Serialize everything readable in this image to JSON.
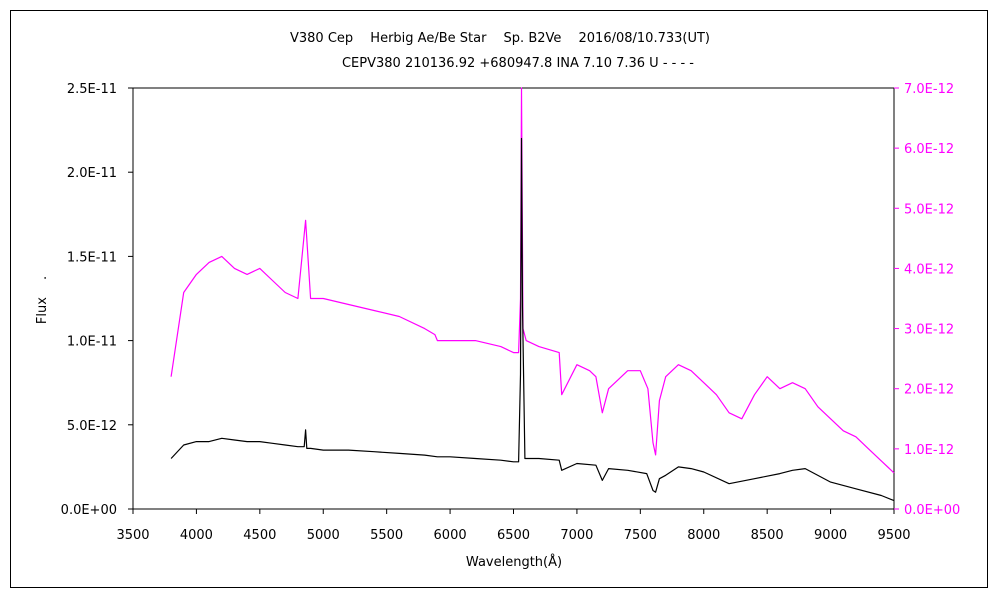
{
  "chart_data": {
    "type": "line",
    "title_line1": "V380 Cep　 Herbig Ae/Be Star　 Sp. B2Ve　 2016/08/10.733(UT)",
    "title_line2": "CEPV380 210136.92 +680947.8 INA 7.10 7.36 U - - - -",
    "xlabel": "Wavelength(Å)",
    "ylabel": "Flux　 .",
    "xlim": [
      3500,
      9500
    ],
    "ylim_left": [
      0,
      2.5e-11
    ],
    "ylim_right": [
      0,
      7e-12
    ],
    "x_ticks": [
      "3500",
      "4000",
      "4500",
      "5000",
      "5500",
      "6000",
      "6500",
      "7000",
      "7500",
      "8000",
      "8500",
      "9000",
      "9500"
    ],
    "y_left_ticks": [
      "0.0E+00",
      "5.0E-12",
      "1.0E-11",
      "1.5E-11",
      "2.0E-11",
      "2.5E-11"
    ],
    "y_right_ticks": [
      "0.0E+00",
      "1.0E-12",
      "2.0E-12",
      "3.0E-12",
      "4.0E-12",
      "5.0E-12",
      "6.0E-12",
      "7.0E-12"
    ],
    "colors": {
      "left_series": "#000000",
      "right_series": "#ff00ff",
      "right_axis": "#ff00ff"
    },
    "series": [
      {
        "axis": "left",
        "x": [
          3800,
          3900,
          4000,
          4100,
          4200,
          4300,
          4400,
          4500,
          4600,
          4700,
          4800,
          4850,
          4861,
          4870,
          4900,
          5000,
          5200,
          5400,
          5600,
          5800,
          5900,
          6000,
          6200,
          6400,
          6500,
          6540,
          6555,
          6563,
          6571,
          6590,
          6600,
          6700,
          6860,
          6880,
          7000,
          7150,
          7200,
          7250,
          7400,
          7550,
          7600,
          7620,
          7650,
          7700,
          7800,
          7900,
          8000,
          8200,
          8400,
          8600,
          8700,
          8800,
          9000,
          9200,
          9400,
          9500
        ],
        "values": [
          3e-12,
          3.8e-12,
          4e-12,
          4e-12,
          4.2e-12,
          4.1e-12,
          4e-12,
          4e-12,
          3.9e-12,
          3.8e-12,
          3.7e-12,
          3.7e-12,
          4.7e-12,
          3.6e-12,
          3.6e-12,
          3.5e-12,
          3.5e-12,
          3.4e-12,
          3.3e-12,
          3.2e-12,
          3.1e-12,
          3.1e-12,
          3e-12,
          2.9e-12,
          2.8e-12,
          2.8e-12,
          8e-12,
          2.2e-11,
          1.2e-11,
          3e-12,
          3e-12,
          3e-12,
          2.9e-12,
          2.3e-12,
          2.7e-12,
          2.6e-12,
          1.7e-12,
          2.4e-12,
          2.3e-12,
          2.1e-12,
          1.1e-12,
          1e-12,
          1.8e-12,
          2e-12,
          2.5e-12,
          2.4e-12,
          2.2e-12,
          1.5e-12,
          1.8e-12,
          2.1e-12,
          2.3e-12,
          2.4e-12,
          1.6e-12,
          1.2e-12,
          8e-13,
          5e-13
        ]
      },
      {
        "axis": "right",
        "x": [
          3800,
          3900,
          4000,
          4100,
          4200,
          4300,
          4400,
          4500,
          4600,
          4700,
          4800,
          4861,
          4900,
          5000,
          5200,
          5400,
          5600,
          5800,
          5880,
          5900,
          6000,
          6200,
          6400,
          6500,
          6540,
          6555,
          6563,
          6575,
          6600,
          6700,
          6860,
          6880,
          7000,
          7100,
          7150,
          7200,
          7250,
          7300,
          7400,
          7500,
          7560,
          7600,
          7620,
          7650,
          7700,
          7800,
          7900,
          8000,
          8100,
          8200,
          8300,
          8400,
          8500,
          8600,
          8700,
          8800,
          8900,
          9000,
          9100,
          9200,
          9300,
          9400,
          9500
        ],
        "values": [
          2.2e-12,
          3.6e-12,
          3.9e-12,
          4.1e-12,
          4.2e-12,
          4e-12,
          3.9e-12,
          4e-12,
          3.8e-12,
          3.6e-12,
          3.5e-12,
          4.8e-12,
          3.5e-12,
          3.5e-12,
          3.4e-12,
          3.3e-12,
          3.2e-12,
          3e-12,
          2.9e-12,
          2.8e-12,
          2.8e-12,
          2.8e-12,
          2.7e-12,
          2.6e-12,
          2.6e-12,
          3.5e-12,
          7e-12,
          3e-12,
          2.8e-12,
          2.7e-12,
          2.6e-12,
          1.9e-12,
          2.4e-12,
          2.3e-12,
          2.2e-12,
          1.6e-12,
          2e-12,
          2.1e-12,
          2.3e-12,
          2.3e-12,
          2e-12,
          1.1e-12,
          9e-13,
          1.8e-12,
          2.2e-12,
          2.4e-12,
          2.3e-12,
          2.1e-12,
          1.9e-12,
          1.6e-12,
          1.5e-12,
          1.9e-12,
          2.2e-12,
          2e-12,
          2.1e-12,
          2e-12,
          1.7e-12,
          1.5e-12,
          1.3e-12,
          1.2e-12,
          1e-12,
          8e-13,
          6e-13
        ]
      }
    ]
  }
}
